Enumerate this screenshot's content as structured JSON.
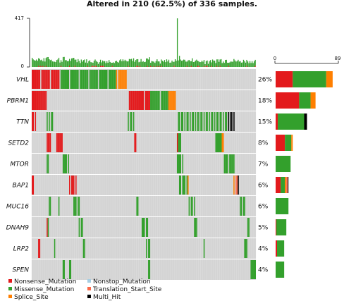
{
  "chart_data": {
    "type": "heatmap",
    "title": "Altered in 210 (62.5%) of 336 samples.",
    "n_samples": 336,
    "n_altered": 210,
    "top_axis": {
      "ylim": [
        0,
        417
      ],
      "ticks": [
        "417",
        "0"
      ]
    },
    "right_axis": {
      "xlim": [
        0,
        89
      ],
      "ticks": [
        "0",
        "89"
      ]
    },
    "colors": {
      "Nonsense_Mutation": "#e31a1c",
      "Missense_Mutation": "#33a02c",
      "Splice_Site": "#ff7f00",
      "Nonstop_Mutation": "#a6cee3",
      "Translation_Start_Site": "#fb6a4a",
      "Multi_Hit": "#000000",
      "background": "#d4d4d4"
    },
    "genes": [
      {
        "name": "VHL",
        "pct": "26%",
        "counts": {
          "Nonsense_Mutation": 24,
          "Missense_Mutation": 47,
          "Splice_Site": 9
        }
      },
      {
        "name": "PBRM1",
        "pct": "18%",
        "counts": {
          "Nonsense_Mutation": 33,
          "Missense_Mutation": 16,
          "Splice_Site": 7
        }
      },
      {
        "name": "TTN",
        "pct": "15%",
        "counts": {
          "Nonsense_Mutation": 3,
          "Missense_Mutation": 37,
          "Multi_Hit": 4
        }
      },
      {
        "name": "SETD2",
        "pct": "8%",
        "counts": {
          "Nonsense_Mutation": 13,
          "Missense_Mutation": 9,
          "Splice_Site": 2
        }
      },
      {
        "name": "MTOR",
        "pct": "7%",
        "counts": {
          "Missense_Mutation": 21
        }
      },
      {
        "name": "BAP1",
        "pct": "6%",
        "counts": {
          "Nonsense_Mutation": 7,
          "Missense_Mutation": 6,
          "Splice_Site": 2,
          "Translation_Start_Site": 2,
          "Multi_Hit": 1
        }
      },
      {
        "name": "MUC16",
        "pct": "6%",
        "counts": {
          "Missense_Mutation": 18
        }
      },
      {
        "name": "DNAH9",
        "pct": "5%",
        "counts": {
          "Nonsense_Mutation": 1,
          "Missense_Mutation": 14
        }
      },
      {
        "name": "LRP2",
        "pct": "4%",
        "counts": {
          "Nonsense_Mutation": 2,
          "Missense_Mutation": 10
        }
      },
      {
        "name": "SPEN",
        "pct": "4%",
        "counts": {
          "Missense_Mutation": 12
        }
      }
    ],
    "legend": [
      {
        "label": "Nonsense_Mutation",
        "key": "Nonsense_Mutation"
      },
      {
        "label": "Nonstop_Mutation",
        "key": "Nonstop_Mutation"
      },
      {
        "label": "Missense_Mutation",
        "key": "Missense_Mutation"
      },
      {
        "label": "Translation_Start_Site",
        "key": "Translation_Start_Site"
      },
      {
        "label": "Splice_Site",
        "key": "Splice_Site"
      },
      {
        "label": "Multi_Hit",
        "key": "Multi_Hit"
      }
    ]
  }
}
